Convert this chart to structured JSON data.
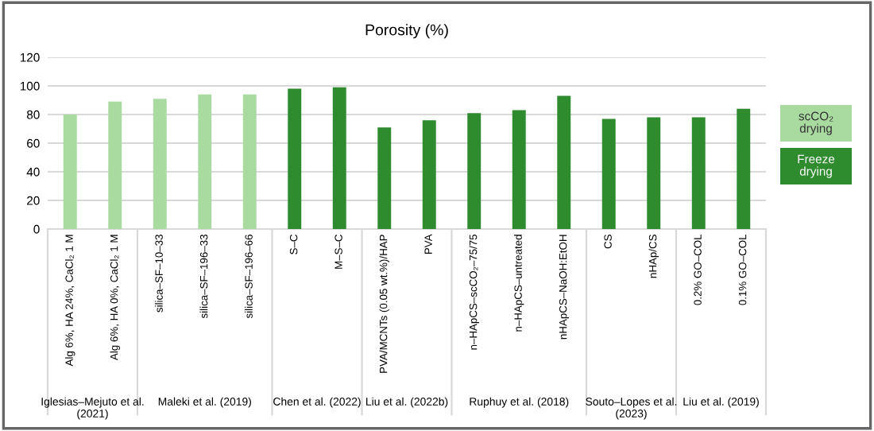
{
  "chart_data": {
    "type": "bar",
    "title": "Porosity (%)",
    "categories": [
      "Alg 6%, HA 24%, CaCl₂ 1 M",
      "Alg 6%, HA 0%, CaCl₂ 1 M",
      "silica–SF–10–33",
      "silica–SF–196–33",
      "silica–SF–196–66",
      "S–C",
      "M–S–C",
      "PVA/MCNTs (0.05 wt.%)/HAP",
      "PVA",
      "n–HApCS–scCO₂–75/75",
      "n–HApCS–untreated",
      "nHApCS–NaOH:EtOH",
      "CS",
      "nHAp/CS",
      "0.2% GO–COL",
      "0.1% GO–COL"
    ],
    "series": [
      {
        "name": "scCO₂ drying",
        "color": "#a9dba0",
        "values": [
          80,
          89,
          91,
          94,
          94,
          null,
          null,
          null,
          null,
          null,
          null,
          null,
          null,
          null,
          null,
          null
        ]
      },
      {
        "name": "Freeze drying",
        "color": "#2e8b2e",
        "values": [
          null,
          null,
          null,
          null,
          null,
          98,
          99,
          71,
          76,
          81,
          83,
          93,
          77,
          78,
          78,
          84
        ]
      }
    ],
    "ylim": [
      0,
      120
    ],
    "yticks": [
      0,
      20,
      40,
      60,
      80,
      100,
      120
    ],
    "grid": "y",
    "legend": "right",
    "annotations": [
      "Iglesias–Mejuto et al. (2021)",
      "Maleki et al. (2019)",
      "Chen et al. (2022)",
      "Liu et al. (2022b)",
      "Ruphuy et al. (2018)",
      "Souto–Lopes et al. (2023)",
      "Liu et al. (2019)"
    ]
  }
}
